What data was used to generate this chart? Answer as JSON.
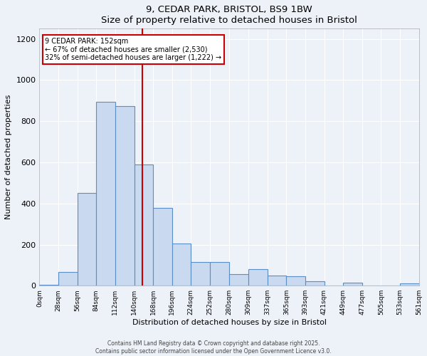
{
  "title": "9, CEDAR PARK, BRISTOL, BS9 1BW",
  "subtitle": "Size of property relative to detached houses in Bristol",
  "xlabel": "Distribution of detached houses by size in Bristol",
  "ylabel": "Number of detached properties",
  "bin_edges": [
    0,
    28,
    56,
    84,
    112,
    140,
    168,
    196,
    224,
    252,
    280,
    309,
    337,
    365,
    393,
    421,
    449,
    477,
    505,
    533,
    561
  ],
  "counts": [
    5,
    65,
    450,
    895,
    875,
    590,
    380,
    205,
    115,
    115,
    55,
    80,
    50,
    45,
    20,
    0,
    15,
    0,
    0,
    10
  ],
  "bar_facecolor": "#c8d9f0",
  "bar_edgecolor": "#5b8ec4",
  "bg_color": "#edf2f9",
  "grid_color": "#ffffff",
  "vline_x": 152,
  "vline_color": "#cc0000",
  "annotation_text": "9 CEDAR PARK: 152sqm\n← 67% of detached houses are smaller (2,530)\n32% of semi-detached houses are larger (1,222) →",
  "annotation_box_edgecolor": "#cc0000",
  "annotation_box_facecolor": "#ffffff",
  "ylim": [
    0,
    1250
  ],
  "yticks": [
    0,
    200,
    400,
    600,
    800,
    1000,
    1200
  ],
  "xlim": [
    0,
    561
  ],
  "footer1": "Contains HM Land Registry data © Crown copyright and database right 2025.",
  "footer2": "Contains public sector information licensed under the Open Government Licence v3.0.",
  "tick_labels": [
    "0sqm",
    "28sqm",
    "56sqm",
    "84sqm",
    "112sqm",
    "140sqm",
    "168sqm",
    "196sqm",
    "224sqm",
    "252sqm",
    "280sqm",
    "309sqm",
    "337sqm",
    "365sqm",
    "393sqm",
    "421sqm",
    "449sqm",
    "477sqm",
    "505sqm",
    "533sqm",
    "561sqm"
  ]
}
